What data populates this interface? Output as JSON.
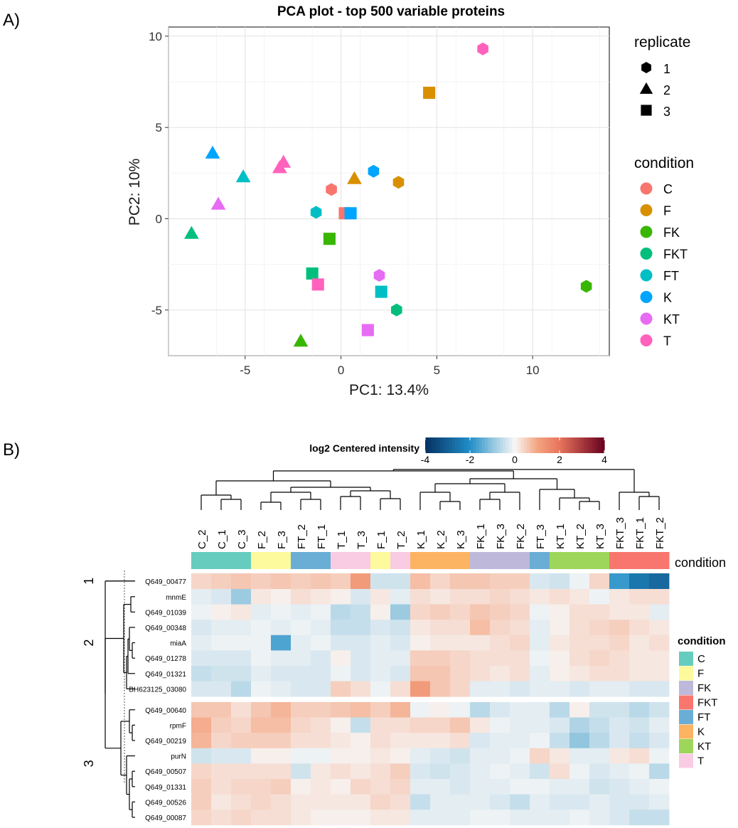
{
  "panel_labels": {
    "a": "A)",
    "b": "B)"
  },
  "colors": {
    "C": "#F8766D",
    "F": "#D89000",
    "FK": "#39B600",
    "FKT": "#00BF7D",
    "FT": "#00BFC4",
    "K": "#00A5FF",
    "KT": "#E76BF3",
    "T": "#FF62BC"
  },
  "annotation_colors": {
    "C": "#66CDBE",
    "F": "#FCFA9C",
    "FK": "#BEB9DA",
    "FKT": "#F8766D",
    "FT": "#6AAED6",
    "K": "#FDB462",
    "KT": "#9DD65A",
    "T": "#F9CCE3"
  },
  "chart_data": [
    {
      "type": "scatter",
      "title": "PCA plot - top 500 variable proteins",
      "xlabel": "PC1: 13.4%",
      "ylabel": "PC2: 10%",
      "xlim": [
        -9,
        14
      ],
      "ylim": [
        -7.5,
        10.5
      ],
      "xticks": [
        -5,
        0,
        5,
        10
      ],
      "yticks": [
        -5,
        0,
        5,
        10
      ],
      "xtick_labels": [
        "-5",
        "0",
        "5",
        "10"
      ],
      "ytick_labels": [
        "-5",
        "0",
        "5",
        "10"
      ],
      "grid": true,
      "legend_shape": {
        "title": "replicate",
        "items": [
          {
            "label": "1",
            "shape": "hexagon"
          },
          {
            "label": "2",
            "shape": "triangle"
          },
          {
            "label": "3",
            "shape": "square"
          }
        ]
      },
      "legend_color": {
        "title": "condition",
        "items": [
          "C",
          "F",
          "FK",
          "FKT",
          "FT",
          "K",
          "KT",
          "T"
        ]
      },
      "points": [
        {
          "condition": "T",
          "replicate": "1",
          "x": 7.4,
          "y": 9.3
        },
        {
          "condition": "F",
          "replicate": "3",
          "x": 4.6,
          "y": 6.9
        },
        {
          "condition": "K",
          "replicate": "2",
          "x": -6.7,
          "y": 3.6
        },
        {
          "condition": "T",
          "replicate": "2",
          "x": -3.0,
          "y": 3.1
        },
        {
          "condition": "T",
          "replicate": "2",
          "x": -3.2,
          "y": 2.8
        },
        {
          "condition": "FT",
          "replicate": "2",
          "x": -5.1,
          "y": 2.3
        },
        {
          "condition": "F",
          "replicate": "2",
          "x": 0.7,
          "y": 2.2
        },
        {
          "condition": "K",
          "replicate": "1",
          "x": 1.7,
          "y": 2.6
        },
        {
          "condition": "F",
          "replicate": "1",
          "x": 3.0,
          "y": 2.0
        },
        {
          "condition": "C",
          "replicate": "1",
          "x": -0.5,
          "y": 1.6
        },
        {
          "condition": "KT",
          "replicate": "2",
          "x": -6.4,
          "y": 0.8
        },
        {
          "condition": "FT",
          "replicate": "1",
          "x": -1.3,
          "y": 0.35
        },
        {
          "condition": "C",
          "replicate": "3",
          "x": 0.2,
          "y": 0.3
        },
        {
          "condition": "K",
          "replicate": "3",
          "x": 0.5,
          "y": 0.3
        },
        {
          "condition": "FKT",
          "replicate": "2",
          "x": -7.8,
          "y": -0.8
        },
        {
          "condition": "FK",
          "replicate": "3",
          "x": -0.6,
          "y": -1.1
        },
        {
          "condition": "FKT",
          "replicate": "3",
          "x": -1.5,
          "y": -3.0
        },
        {
          "condition": "KT",
          "replicate": "1",
          "x": 2.0,
          "y": -3.1
        },
        {
          "condition": "T",
          "replicate": "3",
          "x": -1.2,
          "y": -3.6
        },
        {
          "condition": "FT",
          "replicate": "3",
          "x": 2.1,
          "y": -4.0
        },
        {
          "condition": "FKT",
          "replicate": "1",
          "x": 2.9,
          "y": -5.0
        },
        {
          "condition": "FK",
          "replicate": "1",
          "x": 12.8,
          "y": -3.7
        },
        {
          "condition": "KT",
          "replicate": "3",
          "x": 1.4,
          "y": -6.1
        },
        {
          "condition": "FK",
          "replicate": "2",
          "x": -2.1,
          "y": -6.7
        }
      ]
    },
    {
      "type": "heatmap",
      "colorbar": {
        "title": "log2 Centered intensity",
        "range": [
          -4,
          4
        ],
        "ticks": [
          -4,
          -2,
          0,
          2,
          4
        ],
        "tick_labels": [
          "-4",
          "-2",
          "0",
          "2",
          "4"
        ]
      },
      "annotation_title": "condition",
      "legend": {
        "title": "condition",
        "items": [
          "C",
          "F",
          "FK",
          "FKT",
          "FT",
          "K",
          "KT",
          "T"
        ]
      },
      "columns": [
        "C_2",
        "C_1",
        "C_3",
        "F_2",
        "F_3",
        "FT_2",
        "FT_1",
        "T_1",
        "T_3",
        "F_1",
        "T_2",
        "K_1",
        "K_2",
        "K_3",
        "FK_1",
        "FK_3",
        "FK_2",
        "FT_3",
        "KT_1",
        "KT_2",
        "KT_3",
        "FKT_3",
        "FKT_1",
        "FKT_2"
      ],
      "column_conditions": [
        "C",
        "C",
        "C",
        "F",
        "F",
        "FT",
        "FT",
        "T",
        "T",
        "F",
        "T",
        "K",
        "K",
        "K",
        "FK",
        "FK",
        "FK",
        "FT",
        "KT",
        "KT",
        "KT",
        "FKT",
        "FKT",
        "FKT"
      ],
      "row_clusters": [
        {
          "label": "1",
          "rows": [
            "Q649_00477"
          ]
        },
        {
          "label": "2",
          "rows": [
            "mnmE",
            "Q649_01039",
            "Q649_00348",
            "miaA",
            "Q649_01278",
            "Q649_01321",
            "BH623125_03080"
          ]
        },
        {
          "label": "3",
          "rows": [
            "Q649_00640",
            "rpmF",
            "Q649_00219",
            "purN",
            "Q649_00507",
            "Q649_01331",
            "Q649_00526",
            "Q649_00087"
          ]
        }
      ],
      "values": [
        [
          0.4,
          0.5,
          0.6,
          0.5,
          0.6,
          0.5,
          0.6,
          0.5,
          1.2,
          -0.4,
          -0.4,
          0.7,
          0.4,
          0.6,
          0.6,
          0.5,
          0.5,
          -0.3,
          -0.4,
          -0.1,
          0.4,
          -1.8,
          -2.5,
          -2.8
        ],
        [
          -0.2,
          -0.3,
          -0.9,
          0.2,
          0.1,
          0.3,
          0.2,
          0.1,
          -0.3,
          0.2,
          -0.2,
          0.3,
          0.2,
          0.3,
          0.3,
          0.4,
          0.3,
          0.2,
          0.3,
          0.2,
          -0.1,
          0.2,
          0.3,
          0.3
        ],
        [
          -0.1,
          0.1,
          0.2,
          -0.2,
          -0.1,
          -0.2,
          -0.1,
          -0.6,
          -0.5,
          0.1,
          -0.9,
          0.4,
          0.5,
          0.4,
          0.6,
          0.5,
          0.4,
          -0.1,
          0.1,
          0.3,
          0.3,
          0.2,
          0.2,
          -0.2
        ],
        [
          -0.3,
          -0.2,
          -0.2,
          -0.1,
          -0.2,
          -0.1,
          -0.2,
          -0.5,
          -0.5,
          -0.3,
          -0.4,
          0.2,
          0.3,
          0.3,
          0.7,
          0.4,
          0.3,
          -0.2,
          0.1,
          0.3,
          0.4,
          0.5,
          0.3,
          0.2
        ],
        [
          -0.2,
          -0.1,
          -0.1,
          -0.1,
          -1.6,
          -0.2,
          -0.1,
          -0.3,
          -0.3,
          -0.2,
          -0.3,
          0.1,
          0.2,
          0.2,
          0.2,
          0.3,
          0.4,
          -0.2,
          0.2,
          0.3,
          0.3,
          0.4,
          0.2,
          0.3
        ],
        [
          -0.3,
          -0.3,
          -0.3,
          -0.1,
          -0.2,
          -0.2,
          -0.3,
          0.1,
          -0.3,
          -0.2,
          -0.2,
          0.5,
          0.5,
          0.4,
          0.3,
          0.3,
          0.3,
          -0.1,
          0.1,
          0.3,
          0.4,
          0.3,
          0.2,
          0.2
        ],
        [
          -0.5,
          -0.4,
          -0.4,
          -0.2,
          -0.3,
          -0.3,
          -0.3,
          -0.1,
          -0.3,
          -0.2,
          -0.3,
          0.6,
          0.6,
          0.4,
          0.3,
          0.2,
          0.3,
          -0.2,
          0.1,
          0.2,
          0.3,
          0.3,
          0.2,
          0.2
        ],
        [
          -0.3,
          -0.3,
          -0.6,
          -0.1,
          -0.2,
          -0.3,
          -0.3,
          0.5,
          0.3,
          -0.1,
          0.3,
          1.2,
          0.6,
          0.4,
          -0.2,
          -0.2,
          -0.3,
          -0.2,
          -0.2,
          -0.3,
          -0.2,
          -0.2,
          -0.3,
          -0.3
        ],
        [
          0.6,
          0.6,
          0.3,
          0.6,
          0.8,
          0.5,
          0.5,
          0.6,
          0.7,
          0.5,
          0.8,
          -0.1,
          0.1,
          -0.1,
          -0.6,
          -0.3,
          -0.2,
          -0.2,
          -0.6,
          0.1,
          -0.4,
          -0.4,
          -0.6,
          -0.4
        ],
        [
          0.9,
          0.5,
          0.4,
          0.7,
          0.7,
          0.4,
          0.3,
          0.1,
          -0.5,
          0.3,
          0.3,
          0.4,
          0.4,
          0.6,
          0.2,
          -0.1,
          -0.2,
          -0.2,
          -0.3,
          -0.7,
          -0.5,
          -0.3,
          -0.4,
          -0.2
        ],
        [
          0.8,
          0.4,
          0.5,
          0.5,
          0.5,
          0.3,
          0.3,
          0.2,
          0.1,
          0.3,
          0.2,
          0.2,
          0.2,
          0.3,
          -0.3,
          -0.2,
          -0.2,
          -0.1,
          -0.5,
          -1.0,
          -0.6,
          -0.3,
          -0.5,
          -0.3
        ],
        [
          -0.4,
          -0.3,
          -0.3,
          0.1,
          0.1,
          -0.1,
          -0.1,
          0.1,
          0.1,
          0.2,
          0.1,
          -0.2,
          -0.3,
          -0.4,
          -0.2,
          -0.2,
          -0.1,
          0.4,
          0.2,
          -0.2,
          -0.2,
          0.2,
          0.3,
          -0.1
        ],
        [
          0.4,
          0.3,
          0.3,
          0.3,
          0.3,
          -0.4,
          0.2,
          0.3,
          0.2,
          0.3,
          0.5,
          -0.3,
          -0.4,
          -0.3,
          -0.2,
          -0.1,
          -0.2,
          -0.4,
          0.3,
          -0.1,
          -0.3,
          -0.2,
          -0.1,
          -0.6
        ],
        [
          0.5,
          0.3,
          0.4,
          0.4,
          0.5,
          0.1,
          0.2,
          0.1,
          0.4,
          0.3,
          0.4,
          -0.2,
          -0.2,
          -0.3,
          -0.2,
          -0.2,
          -0.1,
          -0.1,
          -0.2,
          -0.2,
          -0.4,
          -0.3,
          -0.2,
          -0.1
        ],
        [
          0.5,
          0.2,
          0.3,
          0.4,
          0.3,
          0.2,
          0.2,
          0.2,
          0.2,
          0.4,
          0.3,
          -0.5,
          -0.2,
          -0.2,
          -0.2,
          -0.3,
          -0.5,
          -0.2,
          -0.3,
          -0.3,
          -0.2,
          -0.3,
          -0.3,
          -0.2
        ],
        [
          0.4,
          0.3,
          0.4,
          0.3,
          0.3,
          0.2,
          0.1,
          0.1,
          0.1,
          0.2,
          0.2,
          -0.2,
          -0.2,
          -0.2,
          -0.1,
          -0.1,
          -0.2,
          -0.2,
          -0.2,
          -0.1,
          -0.2,
          -0.3,
          -0.5,
          -0.5
        ]
      ]
    }
  ]
}
